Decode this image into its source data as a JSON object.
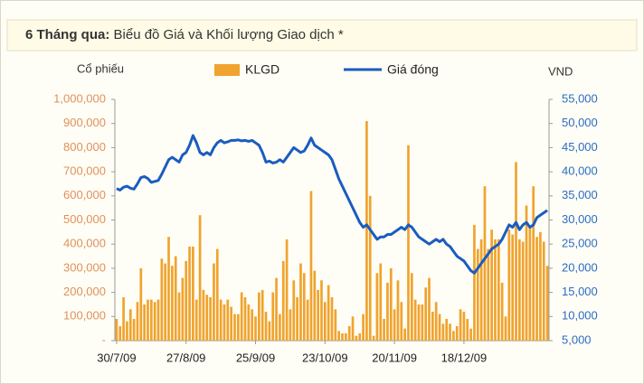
{
  "chart_data": {
    "type": "bar",
    "title": "6 Tháng qua:",
    "subtitle": "Biểu đồ Giá và Khối lượng Giao dịch *",
    "y_label": "Cổ phiếu",
    "y2_label": "VND",
    "categories": [
      "30/7/09",
      null,
      null,
      null,
      null,
      null,
      null,
      null,
      null,
      null,
      null,
      null,
      null,
      null,
      null,
      null,
      null,
      null,
      null,
      null,
      "27/8/09",
      null,
      null,
      null,
      null,
      null,
      null,
      null,
      null,
      null,
      null,
      null,
      null,
      null,
      null,
      null,
      null,
      null,
      null,
      null,
      "25/9/09",
      null,
      null,
      null,
      null,
      null,
      null,
      null,
      null,
      null,
      null,
      null,
      null,
      null,
      null,
      null,
      null,
      null,
      null,
      null,
      "23/10/09",
      null,
      null,
      null,
      null,
      null,
      null,
      null,
      null,
      null,
      null,
      null,
      null,
      null,
      null,
      null,
      null,
      null,
      null,
      null,
      "20/11/09",
      null,
      null,
      null,
      null,
      null,
      null,
      null,
      null,
      null,
      null,
      null,
      null,
      null,
      null,
      null,
      null,
      null,
      null,
      null,
      "18/12/09",
      null,
      null,
      null,
      null,
      null,
      null,
      null,
      null,
      null,
      null,
      null,
      null,
      null,
      null,
      null,
      null,
      null,
      null,
      null,
      null,
      null,
      null,
      null,
      null
    ],
    "series": [
      {
        "name": "KLGD",
        "type": "bar",
        "color": "#f0a32e",
        "values": [
          90000,
          60000,
          180000,
          80000,
          130000,
          90000,
          160000,
          300000,
          150000,
          170000,
          170000,
          160000,
          170000,
          340000,
          320000,
          430000,
          310000,
          350000,
          200000,
          260000,
          330000,
          390000,
          390000,
          170000,
          520000,
          210000,
          190000,
          180000,
          320000,
          380000,
          170000,
          150000,
          170000,
          140000,
          110000,
          110000,
          200000,
          180000,
          150000,
          130000,
          100000,
          200000,
          210000,
          120000,
          80000,
          200000,
          260000,
          110000,
          330000,
          420000,
          130000,
          250000,
          180000,
          320000,
          280000,
          170000,
          620000,
          290000,
          210000,
          250000,
          160000,
          230000,
          180000,
          130000,
          40000,
          30000,
          30000,
          60000,
          100000,
          20000,
          30000,
          110000,
          910000,
          600000,
          20000,
          280000,
          320000,
          90000,
          240000,
          300000,
          130000,
          250000,
          160000,
          50000,
          810000,
          280000,
          170000,
          150000,
          150000,
          220000,
          260000,
          120000,
          160000,
          110000,
          70000,
          90000,
          70000,
          40000,
          60000,
          130000,
          120000,
          90000,
          50000,
          480000,
          380000,
          420000,
          640000,
          380000,
          460000,
          420000,
          420000,
          240000,
          100000,
          460000,
          440000,
          740000,
          420000,
          410000,
          560000,
          470000,
          640000,
          430000,
          450000,
          410000,
          310000
        ]
      },
      {
        "name": "Giá đóng",
        "type": "line",
        "axis": "y2",
        "color": "#1a5cc0",
        "values": [
          36500,
          36200,
          36800,
          37000,
          36600,
          36400,
          37500,
          38800,
          39000,
          38600,
          37800,
          38000,
          38200,
          39500,
          41000,
          42500,
          43000,
          42500,
          42000,
          43500,
          44000,
          45500,
          47500,
          46000,
          44000,
          43500,
          44000,
          43500,
          45000,
          46000,
          46500,
          46000,
          46200,
          46500,
          46500,
          46600,
          46400,
          46500,
          46300,
          46500,
          46000,
          45500,
          44000,
          42000,
          42200,
          41800,
          42000,
          42500,
          42000,
          43000,
          44000,
          45000,
          44500,
          44000,
          44300,
          45500,
          47000,
          45500,
          45000,
          44500,
          44000,
          43500,
          42500,
          40500,
          38500,
          37000,
          35500,
          34000,
          32500,
          31000,
          29500,
          28500,
          29000,
          28000,
          27000,
          26000,
          26500,
          26500,
          27000,
          27000,
          27500,
          28000,
          28500,
          28000,
          29000,
          28500,
          27500,
          26500,
          26000,
          25500,
          25000,
          25500,
          26000,
          25500,
          26000,
          25000,
          24500,
          23500,
          22500,
          22000,
          21500,
          20500,
          19500,
          19000,
          20000,
          21000,
          22000,
          23000,
          24000,
          24500,
          25000,
          26000,
          27500,
          29000,
          28500,
          29500,
          28000,
          29000,
          29500,
          28500,
          29000,
          30500,
          31000,
          31500,
          32000
        ]
      }
    ],
    "ylim": [
      0,
      1000000
    ],
    "yticks": [
      {
        "value": 0,
        "label": "-"
      },
      {
        "value": 100000,
        "label": "100,000"
      },
      {
        "value": 200000,
        "label": "200,000"
      },
      {
        "value": 300000,
        "label": "300,000"
      },
      {
        "value": 400000,
        "label": "400,000"
      },
      {
        "value": 500000,
        "label": "500,000"
      },
      {
        "value": 600000,
        "label": "600,000"
      },
      {
        "value": 700000,
        "label": "700,000"
      },
      {
        "value": 800000,
        "label": "800,000"
      },
      {
        "value": 900000,
        "label": "900,000"
      },
      {
        "value": 1000000,
        "label": "1,000,000"
      }
    ],
    "y2lim": [
      5000,
      55000
    ],
    "y2ticks": [
      {
        "value": 5000,
        "label": "5,000"
      },
      {
        "value": 10000,
        "label": "10,000"
      },
      {
        "value": 15000,
        "label": "15,000"
      },
      {
        "value": 20000,
        "label": "20,000"
      },
      {
        "value": 25000,
        "label": "25,000"
      },
      {
        "value": 30000,
        "label": "30,000"
      },
      {
        "value": 35000,
        "label": "35,000"
      },
      {
        "value": 40000,
        "label": "40,000"
      },
      {
        "value": 45000,
        "label": "45,000"
      },
      {
        "value": 50000,
        "label": "50,000"
      },
      {
        "value": 55000,
        "label": "55,000"
      }
    ]
  }
}
